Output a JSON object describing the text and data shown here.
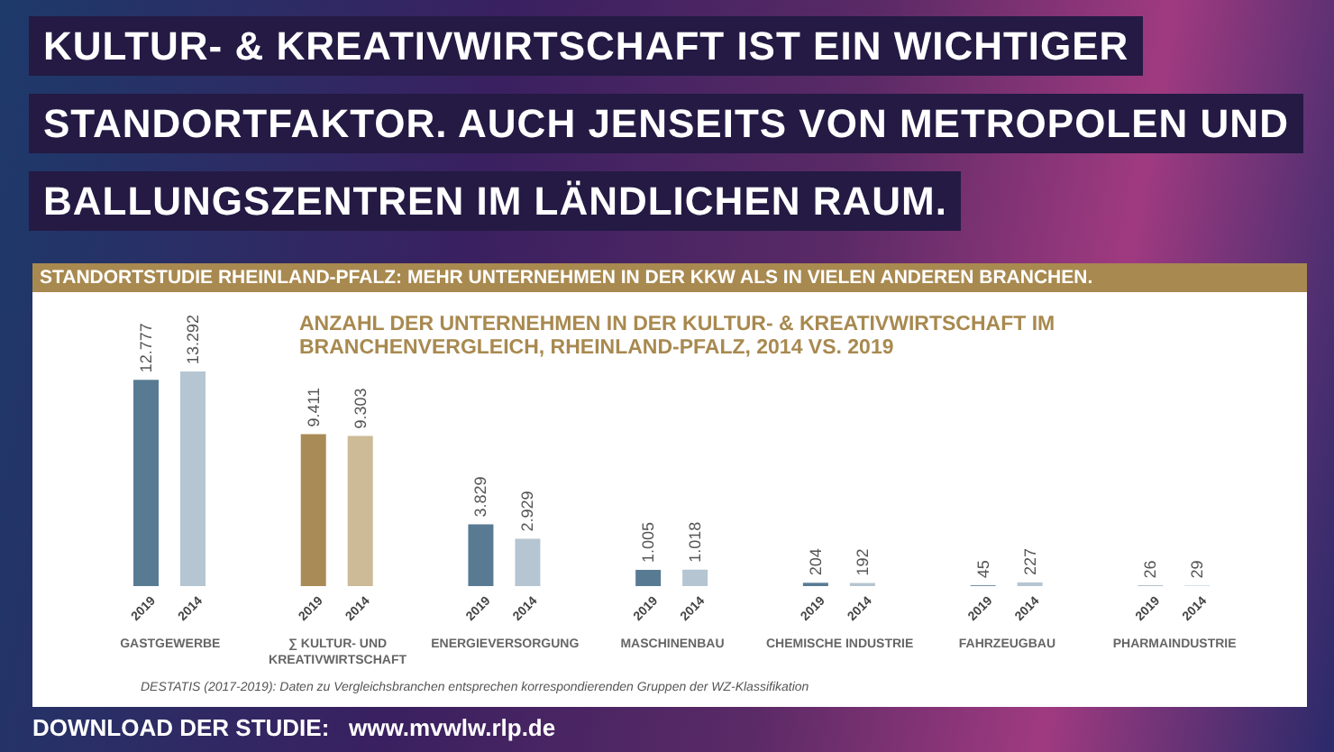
{
  "chart_data": {
    "type": "bar",
    "title": "KULTUR- & KREATIVWIRTSCHAFT IST EIN WICHTIGER STANDORTFAKTOR. AUCH JENSEITS VON METROPOLEN UND BALLUNGSZENTREN IM LÄNDLICHEN RAUM.",
    "subtitle": "STANDORTSTUDIE RHEINLAND-PFALZ: MEHR UNTERNEHMEN IN DER KKW ALS IN VIELEN ANDEREN BRANCHEN.",
    "categories": [
      "GASTGEWERBE",
      "∑ KULTUR- UND KREATIVWIRTSCHAFT",
      "ENERGIEVERSORGUNG",
      "MASCHINENBAU",
      "CHEMISCHE INDUSTRIE",
      "FAHRZEUGBAU",
      "PHARMAINDUSTRIE"
    ],
    "series": [
      {
        "name": "2019",
        "colors": [
          "#587b93",
          "#a98b57",
          "#587b93",
          "#587b93",
          "#587b93",
          "#587b93",
          "#587b93"
        ],
        "values": [
          12777,
          9411,
          3829,
          1005,
          204,
          45,
          26
        ],
        "value_labels": [
          "12.777",
          "9.411",
          "3.829",
          "1.005",
          "204",
          "45",
          "26"
        ]
      },
      {
        "name": "2014",
        "colors": [
          "#b5c5d1",
          "#cdba96",
          "#b5c5d1",
          "#b5c5d1",
          "#b5c5d1",
          "#b5c5d1",
          "#b5c5d1"
        ],
        "values": [
          13292,
          9303,
          2929,
          1018,
          192,
          227,
          29
        ],
        "value_labels": [
          "13.292",
          "9.303",
          "2.929",
          "1.018",
          "192",
          "227",
          "29"
        ]
      }
    ],
    "annotations": [
      "ANZAHL DER UNTERNEHMEN IN DER KULTUR- & KREATIVWIRTSCHAFT IM BRANCHENVERGLEICH, RHEINLAND-PFALZ, 2014 VS. 2019",
      "DESTATIS (2017-2019): Daten zu Vergleichsbranchen entsprechen korrespondierenden Gruppen der WZ-Klassifikation",
      "DOWNLOAD DER STUDIE:   www.mvwlw.rlp.de"
    ]
  }
}
